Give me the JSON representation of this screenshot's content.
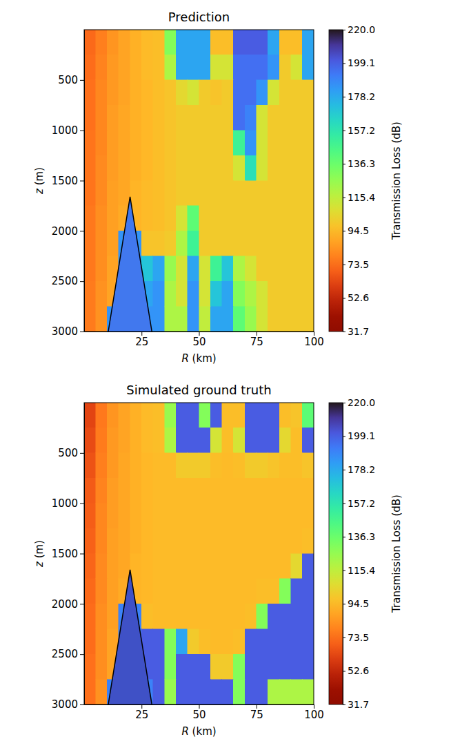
{
  "chart_data": [
    {
      "type": "heatmap",
      "title": "Prediction",
      "x_label": "R (km)",
      "y_label": "z (m)",
      "xlim": [
        0,
        100
      ],
      "ylim": [
        0,
        3000
      ],
      "xticks": [
        25,
        50,
        75,
        100
      ],
      "yticks": [
        500,
        1000,
        1500,
        2000,
        2500,
        3000
      ],
      "x_bins": [
        0,
        5,
        10,
        15,
        20,
        25,
        30,
        35,
        40,
        45,
        50,
        55,
        60,
        65,
        70,
        75,
        80,
        85,
        90,
        95,
        100
      ],
      "y_bins": [
        0,
        250,
        500,
        750,
        1000,
        1250,
        1500,
        1750,
        2000,
        2250,
        2500,
        2750,
        3000
      ],
      "values": [
        [
          72,
          78,
          84,
          88,
          92,
          95,
          96,
          130,
          180,
          180,
          180,
          96,
          96,
          200,
          200,
          200,
          180,
          96,
          96,
          180
        ],
        [
          73,
          79,
          85,
          88,
          92,
          95,
          96,
          120,
          180,
          180,
          180,
          110,
          110,
          195,
          195,
          195,
          185,
          100,
          110,
          180
        ],
        [
          74,
          80,
          85,
          88,
          92,
          94,
          96,
          98,
          105,
          110,
          100,
          98,
          100,
          195,
          195,
          185,
          110,
          100,
          100,
          100
        ],
        [
          74,
          80,
          86,
          89,
          92,
          94,
          96,
          98,
          100,
          100,
          100,
          100,
          100,
          195,
          190,
          110,
          100,
          100,
          100,
          100
        ],
        [
          75,
          80,
          86,
          89,
          92,
          94,
          96,
          98,
          100,
          100,
          100,
          100,
          100,
          150,
          185,
          110,
          100,
          100,
          100,
          100
        ],
        [
          75,
          81,
          86,
          89,
          92,
          94,
          96,
          98,
          100,
          100,
          100,
          100,
          100,
          110,
          160,
          110,
          100,
          100,
          100,
          100
        ],
        [
          75,
          81,
          87,
          89,
          93,
          95,
          96,
          98,
          100,
          100,
          100,
          100,
          100,
          100,
          100,
          100,
          100,
          100,
          100,
          100
        ],
        [
          76,
          82,
          87,
          90,
          93,
          95,
          96,
          98,
          110,
          140,
          100,
          100,
          100,
          100,
          100,
          100,
          100,
          100,
          100,
          100
        ],
        [
          76,
          82,
          87,
          185,
          185,
          98,
          98,
          100,
          120,
          150,
          100,
          100,
          100,
          100,
          100,
          100,
          100,
          100,
          100,
          100
        ],
        [
          76,
          82,
          88,
          185,
          185,
          170,
          180,
          125,
          110,
          180,
          110,
          150,
          170,
          120,
          110,
          100,
          100,
          100,
          100,
          100
        ],
        [
          77,
          83,
          88,
          185,
          185,
          180,
          185,
          120,
          110,
          185,
          110,
          170,
          180,
          130,
          120,
          110,
          100,
          100,
          100,
          100
        ],
        [
          77,
          83,
          185,
          185,
          185,
          185,
          185,
          120,
          120,
          185,
          115,
          180,
          180,
          140,
          125,
          110,
          100,
          100,
          100,
          100
        ]
      ],
      "color": "turbo_r",
      "colorbar": {
        "label": "Transmission Loss (dB)",
        "range": [
          31.7,
          220
        ],
        "ticks": [
          31.7,
          52.6,
          73.5,
          94.5,
          115.4,
          136.3,
          157.2,
          178.2,
          199.1,
          {
            "value": 220,
            "label": "220.0"
          }
        ]
      },
      "seamount": {
        "x": [
          10.5,
          20,
          29.5
        ],
        "y": [
          3000,
          1660,
          3000
        ],
        "color": "#4178ee"
      }
    },
    {
      "type": "heatmap",
      "title": "Simulated ground truth",
      "x_label": "R (km)",
      "y_label": "z (m)",
      "xlim": [
        0,
        100
      ],
      "ylim": [
        0,
        3000
      ],
      "xticks": [
        25,
        50,
        75,
        100
      ],
      "yticks": [
        500,
        1000,
        1500,
        2000,
        2500,
        3000
      ],
      "x_bins": [
        0,
        5,
        10,
        15,
        20,
        25,
        30,
        35,
        40,
        45,
        50,
        55,
        60,
        65,
        70,
        75,
        80,
        85,
        90,
        95,
        100
      ],
      "y_bins": [
        0,
        250,
        500,
        750,
        1000,
        1250,
        1500,
        1750,
        2000,
        2250,
        2500,
        2750,
        3000
      ],
      "values": [
        [
          62,
          76,
          84,
          88,
          92,
          95,
          96,
          125,
          200,
          200,
          130,
          200,
          96,
          96,
          200,
          200,
          200,
          96,
          98,
          140
        ],
        [
          64,
          77,
          85,
          88,
          92,
          95,
          96,
          120,
          200,
          200,
          200,
          110,
          96,
          110,
          200,
          200,
          200,
          105,
          96,
          200
        ],
        [
          66,
          78,
          85,
          89,
          92,
          94,
          95,
          95,
          100,
          100,
          100,
          96,
          95,
          96,
          100,
          100,
          98,
          96,
          96,
          98
        ],
        [
          68,
          79,
          86,
          89,
          92,
          94,
          95,
          95,
          95,
          95,
          95,
          95,
          95,
          95,
          95,
          95,
          95,
          95,
          95,
          95
        ],
        [
          69,
          80,
          86,
          89,
          92,
          94,
          95,
          95,
          95,
          95,
          95,
          95,
          95,
          95,
          95,
          95,
          95,
          95,
          95,
          95
        ],
        [
          70,
          80,
          87,
          89,
          92,
          94,
          95,
          95,
          95,
          95,
          95,
          95,
          95,
          95,
          95,
          95,
          95,
          95,
          95,
          96
        ],
        [
          71,
          81,
          87,
          89,
          93,
          94,
          95,
          95,
          95,
          95,
          95,
          95,
          95,
          95,
          95,
          95,
          95,
          95,
          105,
          200
        ],
        [
          72,
          81,
          87,
          90,
          93,
          94,
          95,
          95,
          95,
          95,
          95,
          95,
          95,
          95,
          95,
          96,
          96,
          130,
          200,
          200
        ],
        [
          73,
          82,
          87,
          190,
          190,
          96,
          95,
          95,
          95,
          95,
          95,
          95,
          95,
          95,
          96,
          130,
          200,
          200,
          200,
          200
        ],
        [
          73,
          82,
          88,
          190,
          190,
          200,
          200,
          130,
          180,
          100,
          96,
          95,
          95,
          96,
          200,
          200,
          200,
          200,
          200,
          200
        ],
        [
          74,
          82,
          88,
          190,
          190,
          200,
          200,
          130,
          200,
          200,
          200,
          100,
          100,
          130,
          200,
          200,
          200,
          200,
          200,
          200
        ],
        [
          74,
          83,
          190,
          190,
          190,
          190,
          200,
          125,
          200,
          200,
          200,
          200,
          200,
          130,
          200,
          200,
          120,
          120,
          120,
          120
        ]
      ],
      "color": "turbo_r",
      "colorbar": {
        "label": "Transmission Loss (dB)",
        "range": [
          31.7,
          220
        ],
        "ticks": [
          31.7,
          52.6,
          73.5,
          94.5,
          115.4,
          136.3,
          157.2,
          178.2,
          199.1,
          {
            "value": 220,
            "label": "220.0"
          }
        ]
      },
      "seamount": {
        "x": [
          10.5,
          20,
          29.5
        ],
        "y": [
          3000,
          1660,
          3000
        ],
        "color": "#3f51c6"
      }
    }
  ]
}
